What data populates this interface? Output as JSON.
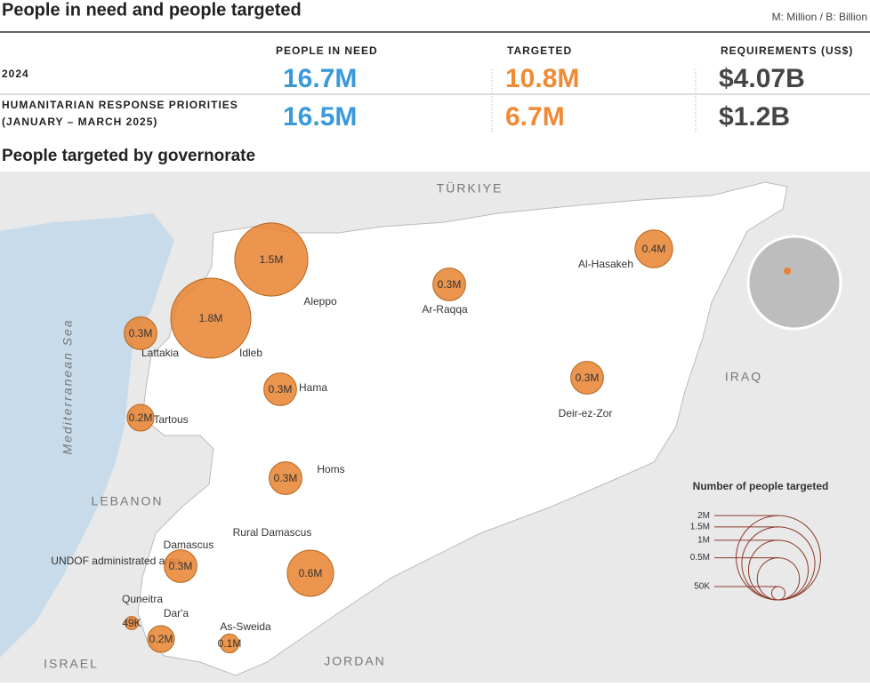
{
  "header": {
    "title": "People in need and people targeted",
    "note": "M: Million / B: Billion"
  },
  "table": {
    "columns": [
      "PEOPLE IN NEED",
      "TARGETED",
      "REQUIREMENTS (US$)"
    ],
    "rows": [
      {
        "label": [
          "2024"
        ],
        "cells": [
          "16.7M",
          "10.8M",
          "$4.07B"
        ]
      },
      {
        "label": [
          "HUMANITARIAN RESPONSE PRIORITIES",
          "(JANUARY – MARCH 2025)"
        ],
        "cells": [
          "16.5M",
          "6.7M",
          "$1.2B"
        ]
      }
    ]
  },
  "map": {
    "title": "People targeted by governorate",
    "places": [
      "TÜRKIYE",
      "IRAQ",
      "LEBANON",
      "JORDAN",
      "ISRAEL",
      "Mediterranean Sea",
      "UNDOF administrated area"
    ],
    "governorates": [
      {
        "name": "Idleb",
        "value": 1800000,
        "value_label": "1.8M"
      },
      {
        "name": "Aleppo",
        "value": 1500000,
        "value_label": "1.5M"
      },
      {
        "name": "Lattakia",
        "value": 300000,
        "value_label": "0.3M"
      },
      {
        "name": "Tartous",
        "value": 200000,
        "value_label": "0.2M"
      },
      {
        "name": "Hama",
        "value": 300000,
        "value_label": "0.3M"
      },
      {
        "name": "Homs",
        "value": 300000,
        "value_label": "0.3M"
      },
      {
        "name": "Damascus",
        "value": 300000,
        "value_label": "0.3M"
      },
      {
        "name": "Rural Damascus",
        "value": 600000,
        "value_label": "0.6M"
      },
      {
        "name": "Quneitra",
        "value": 49000,
        "value_label": "49K"
      },
      {
        "name": "Dar'a",
        "value": 200000,
        "value_label": "0.2M"
      },
      {
        "name": "As-Sweida",
        "value": 100000,
        "value_label": "0.1M"
      },
      {
        "name": "Ar-Raqqa",
        "value": 300000,
        "value_label": "0.3M"
      },
      {
        "name": "Deir-ez-Zor",
        "value": 300000,
        "value_label": "0.3M"
      },
      {
        "name": "Al-Hasakeh",
        "value": 400000,
        "value_label": "0.4M"
      }
    ],
    "legend": {
      "title": "Number of people targeted",
      "ticks": [
        {
          "value": 2000000,
          "label": "2M"
        },
        {
          "value": 1500000,
          "label": "1.5M"
        },
        {
          "value": 1000000,
          "label": "1M"
        },
        {
          "value": 500000,
          "label": "0.5M"
        },
        {
          "value": 50000,
          "label": "50K"
        }
      ]
    }
  }
}
